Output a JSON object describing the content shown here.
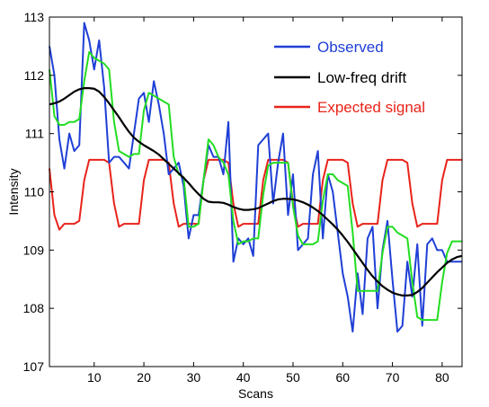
{
  "chart_data": {
    "type": "line",
    "title": "",
    "xlabel": "Scans",
    "ylabel": "Intensity",
    "xlim": [
      1,
      84
    ],
    "ylim": [
      107,
      113
    ],
    "xticks": [
      10,
      20,
      30,
      40,
      50,
      60,
      70,
      80
    ],
    "yticks": [
      107,
      108,
      109,
      110,
      111,
      112,
      113
    ],
    "grid": false,
    "legend_position": "top-right",
    "series": [
      {
        "name": "Observed",
        "color": "#1f3fd6",
        "x": [
          1,
          2,
          3,
          4,
          5,
          6,
          7,
          8,
          9,
          10,
          11,
          12,
          13,
          14,
          15,
          16,
          17,
          18,
          19,
          20,
          21,
          22,
          23,
          24,
          25,
          26,
          27,
          28,
          29,
          30,
          31,
          32,
          33,
          34,
          35,
          36,
          37,
          38,
          39,
          40,
          41,
          42,
          43,
          44,
          45,
          46,
          47,
          48,
          49,
          50,
          51,
          52,
          53,
          54,
          55,
          56,
          57,
          58,
          59,
          60,
          61,
          62,
          63,
          64,
          65,
          66,
          67,
          68,
          69,
          70,
          71,
          72,
          73,
          74,
          75,
          76,
          77,
          78,
          79,
          80,
          81,
          82,
          83,
          84
        ],
        "y": [
          112.5,
          112.0,
          110.9,
          110.4,
          111.0,
          110.7,
          110.8,
          112.9,
          112.6,
          112.1,
          112.6,
          111.8,
          110.5,
          110.6,
          110.6,
          110.5,
          110.4,
          111.0,
          111.6,
          111.7,
          111.2,
          111.9,
          111.5,
          111.0,
          110.3,
          110.4,
          110.5,
          110.1,
          109.2,
          109.6,
          109.6,
          110.2,
          110.8,
          110.6,
          110.6,
          110.3,
          111.2,
          108.8,
          109.2,
          109.1,
          109.2,
          108.9,
          110.8,
          110.9,
          111.0,
          109.8,
          110.5,
          111.0,
          109.6,
          110.3,
          109.0,
          109.1,
          109.2,
          110.3,
          110.7,
          109.2,
          110.3,
          110.0,
          109.3,
          108.6,
          108.2,
          107.6,
          108.6,
          107.9,
          109.2,
          109.4,
          108.0,
          109.0,
          109.5,
          108.5,
          107.6,
          107.7,
          108.8,
          108.2,
          109.1,
          107.7,
          109.1,
          109.2,
          109.0,
          109.0,
          108.8,
          108.8,
          108.8,
          108.8
        ]
      },
      {
        "name": "Low-freq drift",
        "color": "#000000",
        "x": [
          1,
          2,
          3,
          4,
          5,
          6,
          7,
          8,
          9,
          10,
          11,
          12,
          13,
          14,
          15,
          16,
          17,
          18,
          19,
          20,
          21,
          22,
          23,
          24,
          25,
          26,
          27,
          28,
          29,
          30,
          31,
          32,
          33,
          34,
          35,
          36,
          37,
          38,
          39,
          40,
          41,
          42,
          43,
          44,
          45,
          46,
          47,
          48,
          49,
          50,
          51,
          52,
          53,
          54,
          55,
          56,
          57,
          58,
          59,
          60,
          61,
          62,
          63,
          64,
          65,
          66,
          67,
          68,
          69,
          70,
          71,
          72,
          73,
          74,
          75,
          76,
          77,
          78,
          79,
          80,
          81,
          82,
          83,
          84
        ],
        "y": [
          111.5,
          111.52,
          111.55,
          111.6,
          111.66,
          111.72,
          111.76,
          111.78,
          111.78,
          111.77,
          111.72,
          111.63,
          111.52,
          111.4,
          111.28,
          111.15,
          111.03,
          110.93,
          110.86,
          110.8,
          110.75,
          110.7,
          110.64,
          110.56,
          110.48,
          110.4,
          110.32,
          110.24,
          110.15,
          110.05,
          109.96,
          109.88,
          109.83,
          109.82,
          109.82,
          109.81,
          109.78,
          109.74,
          109.71,
          109.69,
          109.69,
          109.7,
          109.72,
          109.76,
          109.8,
          109.84,
          109.87,
          109.88,
          109.88,
          109.87,
          109.85,
          109.82,
          109.78,
          109.73,
          109.67,
          109.6,
          109.52,
          109.44,
          109.35,
          109.25,
          109.14,
          109.02,
          108.9,
          108.78,
          108.66,
          108.55,
          108.46,
          108.38,
          108.32,
          108.27,
          108.24,
          108.22,
          108.22,
          108.23,
          108.28,
          108.35,
          108.44,
          108.53,
          108.62,
          108.7,
          108.78,
          108.84,
          108.88,
          108.9
        ]
      },
      {
        "name": "Expected signal",
        "color": "#e8231a",
        "x": [
          1,
          2,
          3,
          4,
          5,
          6,
          7,
          8,
          9,
          10,
          11,
          12,
          13,
          14,
          15,
          16,
          17,
          18,
          19,
          20,
          21,
          22,
          23,
          24,
          25,
          26,
          27,
          28,
          29,
          30,
          31,
          32,
          33,
          34,
          35,
          36,
          37,
          38,
          39,
          40,
          41,
          42,
          43,
          44,
          45,
          46,
          47,
          48,
          49,
          50,
          51,
          52,
          53,
          54,
          55,
          56,
          57,
          58,
          59,
          60,
          61,
          62,
          63,
          64,
          65,
          66,
          67,
          68,
          69,
          70,
          71,
          72,
          73,
          74,
          75,
          76,
          77,
          78,
          79,
          80,
          81,
          82,
          83,
          84
        ],
        "y": [
          110.4,
          109.6,
          109.35,
          109.45,
          109.45,
          109.45,
          109.5,
          110.2,
          110.55,
          110.55,
          110.55,
          110.55,
          110.5,
          109.8,
          109.4,
          109.45,
          109.45,
          109.45,
          109.45,
          110.2,
          110.55,
          110.55,
          110.55,
          110.55,
          110.5,
          109.8,
          109.4,
          109.45,
          109.45,
          109.45,
          109.45,
          110.2,
          110.55,
          110.55,
          110.55,
          110.55,
          110.5,
          109.8,
          109.4,
          109.45,
          109.45,
          109.45,
          109.45,
          110.2,
          110.55,
          110.55,
          110.55,
          110.55,
          110.5,
          109.8,
          109.4,
          109.45,
          109.45,
          109.45,
          109.45,
          110.2,
          110.55,
          110.55,
          110.55,
          110.55,
          110.5,
          109.8,
          109.4,
          109.45,
          109.45,
          109.45,
          109.45,
          110.2,
          110.55,
          110.55,
          110.55,
          110.55,
          110.5,
          109.8,
          109.4,
          109.45,
          109.45,
          109.45,
          109.45,
          110.2,
          110.55,
          110.55,
          110.55,
          110.55
        ]
      },
      {
        "name": "",
        "color": "#22dd22",
        "x": [
          1,
          2,
          3,
          4,
          5,
          6,
          7,
          8,
          9,
          10,
          11,
          12,
          13,
          14,
          15,
          16,
          17,
          18,
          19,
          20,
          21,
          22,
          23,
          24,
          25,
          26,
          27,
          28,
          29,
          30,
          31,
          32,
          33,
          34,
          35,
          36,
          37,
          38,
          39,
          40,
          41,
          42,
          43,
          44,
          45,
          46,
          47,
          48,
          49,
          50,
          51,
          52,
          53,
          54,
          55,
          56,
          57,
          58,
          59,
          60,
          61,
          62,
          63,
          64,
          65,
          66,
          67,
          68,
          69,
          70,
          71,
          72,
          73,
          74,
          75,
          76,
          77,
          78,
          79,
          80,
          81,
          82,
          83,
          84
        ],
        "y": [
          112.1,
          111.3,
          111.15,
          111.15,
          111.2,
          111.2,
          111.25,
          111.9,
          112.4,
          112.3,
          112.25,
          112.2,
          112.1,
          111.2,
          110.7,
          110.65,
          110.6,
          110.65,
          110.65,
          111.4,
          111.7,
          111.65,
          111.6,
          111.55,
          111.5,
          110.6,
          110.3,
          110.25,
          109.4,
          109.4,
          109.45,
          110.2,
          110.9,
          110.8,
          110.6,
          110.5,
          110.3,
          109.5,
          109.1,
          109.15,
          109.15,
          109.2,
          109.2,
          109.95,
          110.45,
          110.5,
          110.5,
          110.5,
          110.5,
          109.75,
          109.25,
          109.1,
          109.1,
          109.1,
          109.15,
          109.85,
          110.3,
          110.3,
          110.2,
          110.15,
          110.1,
          109.3,
          108.3,
          108.3,
          108.3,
          108.3,
          108.3,
          108.95,
          109.4,
          109.4,
          109.3,
          109.25,
          109.2,
          108.45,
          107.85,
          107.8,
          107.8,
          107.8,
          107.8,
          108.45,
          108.95,
          109.15,
          109.15,
          109.15
        ]
      }
    ]
  }
}
